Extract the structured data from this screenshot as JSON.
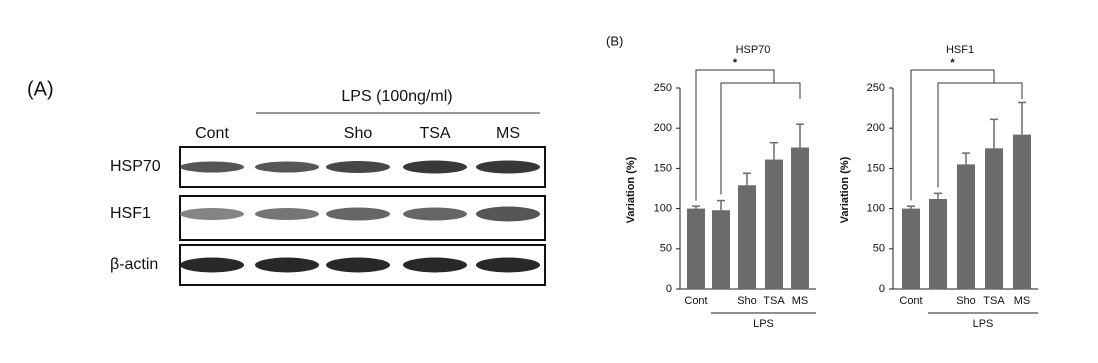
{
  "panel_a": {
    "label": "(A)",
    "treatment": "LPS (100ng/ml)",
    "lanes": [
      "Cont",
      null,
      "Sho",
      "TSA",
      "MS"
    ],
    "rows": [
      "HSP70",
      "HSF1",
      "β-actin"
    ]
  },
  "panel_b_label": "(B)",
  "chart_data": [
    {
      "type": "bar",
      "title": "HSP70",
      "ylabel": "Variation (%)",
      "categories": [
        "Cont",
        null,
        "Sho",
        "TSA",
        "MS"
      ],
      "values": [
        100,
        98,
        129,
        161,
        176
      ],
      "errors": [
        3,
        12,
        15,
        21,
        29
      ],
      "color": "#6b6b6b",
      "ylim": [
        0,
        250
      ],
      "yticks": [
        0,
        50,
        100,
        150,
        200,
        250
      ],
      "group_label": "LPS",
      "annotation": "*"
    },
    {
      "type": "bar",
      "title": "HSF1",
      "ylabel": "Variation (%)",
      "categories": [
        "Cont",
        null,
        "Sho",
        "TSA",
        "MS"
      ],
      "values": [
        100,
        112,
        155,
        175,
        192
      ],
      "errors": [
        3,
        7,
        14,
        36,
        40
      ],
      "color": "#6b6b6b",
      "ylim": [
        0,
        250
      ],
      "yticks": [
        0,
        50,
        100,
        150,
        200,
        250
      ],
      "group_label": "LPS",
      "annotation": "*"
    }
  ]
}
